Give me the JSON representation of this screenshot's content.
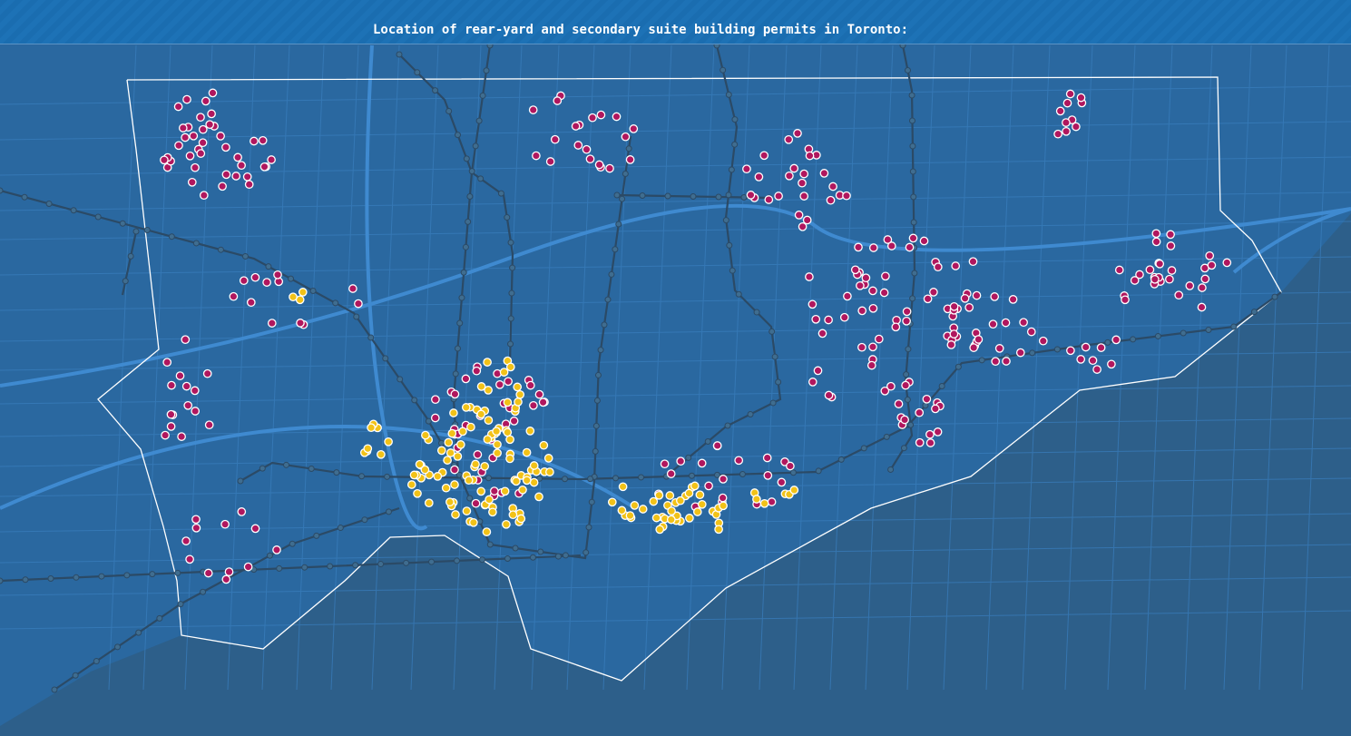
{
  "title": "Location of rear-yard and secondary suite building permits in Toronto:"
}
